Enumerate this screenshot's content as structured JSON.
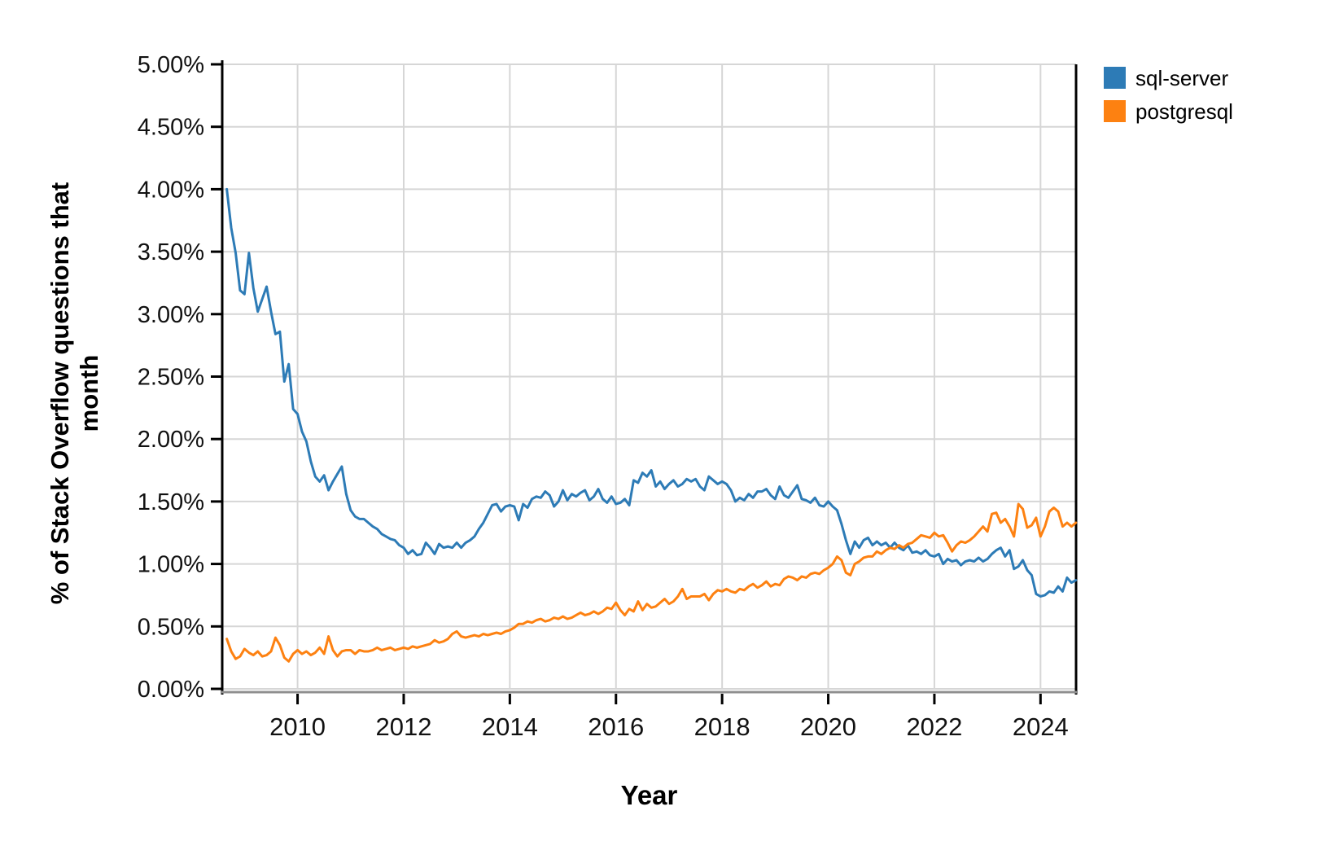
{
  "chart_data": {
    "type": "line",
    "title": "",
    "xlabel": "Year",
    "ylabel": "% of Stack Overflow questions that month",
    "x_start_year": 2008.6667,
    "x_step_years": 0.08333,
    "xlim": [
      2008.58,
      2024.67
    ],
    "ylim": [
      0,
      5
    ],
    "grid": true,
    "legend_position": "top-right",
    "x_ticks": [
      {
        "value": 2010,
        "label": "2010"
      },
      {
        "value": 2012,
        "label": "2012"
      },
      {
        "value": 2014,
        "label": "2014"
      },
      {
        "value": 2016,
        "label": "2016"
      },
      {
        "value": 2018,
        "label": "2018"
      },
      {
        "value": 2020,
        "label": "2020"
      },
      {
        "value": 2022,
        "label": "2022"
      },
      {
        "value": 2024,
        "label": "2024"
      }
    ],
    "y_ticks": [
      {
        "value": 0.0,
        "label": "0.00%"
      },
      {
        "value": 0.5,
        "label": "0.50%"
      },
      {
        "value": 1.0,
        "label": "1.00%"
      },
      {
        "value": 1.5,
        "label": "1.50%"
      },
      {
        "value": 2.0,
        "label": "2.00%"
      },
      {
        "value": 2.5,
        "label": "2.50%"
      },
      {
        "value": 3.0,
        "label": "3.00%"
      },
      {
        "value": 3.5,
        "label": "3.50%"
      },
      {
        "value": 4.0,
        "label": "4.00%"
      },
      {
        "value": 4.5,
        "label": "4.50%"
      },
      {
        "value": 5.0,
        "label": "5.00%"
      }
    ],
    "series": [
      {
        "name": "sql-server",
        "color": "#2d7bb6",
        "unit": "percent",
        "values": [
          4.0,
          3.69,
          3.49,
          3.19,
          3.16,
          3.49,
          3.21,
          3.02,
          3.12,
          3.22,
          3.02,
          2.84,
          2.86,
          2.46,
          2.6,
          2.24,
          2.2,
          2.06,
          1.98,
          1.82,
          1.7,
          1.66,
          1.71,
          1.59,
          1.66,
          1.72,
          1.78,
          1.56,
          1.43,
          1.38,
          1.36,
          1.36,
          1.33,
          1.3,
          1.28,
          1.24,
          1.22,
          1.2,
          1.19,
          1.15,
          1.13,
          1.08,
          1.11,
          1.07,
          1.08,
          1.17,
          1.13,
          1.08,
          1.16,
          1.13,
          1.14,
          1.13,
          1.17,
          1.13,
          1.17,
          1.19,
          1.22,
          1.28,
          1.33,
          1.4,
          1.47,
          1.48,
          1.42,
          1.46,
          1.47,
          1.46,
          1.35,
          1.48,
          1.45,
          1.52,
          1.54,
          1.53,
          1.58,
          1.55,
          1.46,
          1.5,
          1.59,
          1.51,
          1.56,
          1.54,
          1.57,
          1.59,
          1.51,
          1.54,
          1.6,
          1.52,
          1.49,
          1.54,
          1.48,
          1.49,
          1.52,
          1.47,
          1.67,
          1.65,
          1.73,
          1.7,
          1.75,
          1.62,
          1.66,
          1.6,
          1.64,
          1.67,
          1.62,
          1.64,
          1.68,
          1.66,
          1.68,
          1.62,
          1.59,
          1.7,
          1.67,
          1.64,
          1.66,
          1.64,
          1.59,
          1.5,
          1.53,
          1.51,
          1.56,
          1.53,
          1.58,
          1.58,
          1.6,
          1.55,
          1.52,
          1.62,
          1.55,
          1.53,
          1.58,
          1.63,
          1.52,
          1.51,
          1.49,
          1.53,
          1.47,
          1.46,
          1.5,
          1.46,
          1.43,
          1.32,
          1.19,
          1.08,
          1.18,
          1.13,
          1.19,
          1.21,
          1.15,
          1.18,
          1.15,
          1.17,
          1.13,
          1.17,
          1.13,
          1.11,
          1.15,
          1.09,
          1.1,
          1.08,
          1.11,
          1.07,
          1.06,
          1.08,
          1.0,
          1.04,
          1.02,
          1.03,
          0.99,
          1.02,
          1.03,
          1.02,
          1.05,
          1.02,
          1.04,
          1.08,
          1.11,
          1.13,
          1.06,
          1.11,
          0.96,
          0.98,
          1.03,
          0.95,
          0.91,
          0.76,
          0.74,
          0.75,
          0.78,
          0.77,
          0.82,
          0.78,
          0.89,
          0.85,
          0.87
        ]
      },
      {
        "name": "postgresql",
        "color": "#fd8111",
        "unit": "percent",
        "values": [
          0.4,
          0.3,
          0.24,
          0.26,
          0.32,
          0.29,
          0.27,
          0.3,
          0.26,
          0.27,
          0.3,
          0.41,
          0.35,
          0.25,
          0.22,
          0.28,
          0.31,
          0.28,
          0.3,
          0.27,
          0.29,
          0.33,
          0.28,
          0.42,
          0.31,
          0.26,
          0.3,
          0.31,
          0.31,
          0.28,
          0.31,
          0.3,
          0.3,
          0.31,
          0.33,
          0.31,
          0.32,
          0.33,
          0.31,
          0.32,
          0.33,
          0.32,
          0.34,
          0.33,
          0.34,
          0.35,
          0.36,
          0.39,
          0.37,
          0.38,
          0.4,
          0.44,
          0.46,
          0.42,
          0.41,
          0.42,
          0.43,
          0.42,
          0.44,
          0.43,
          0.44,
          0.45,
          0.44,
          0.46,
          0.47,
          0.49,
          0.52,
          0.52,
          0.54,
          0.53,
          0.55,
          0.56,
          0.54,
          0.55,
          0.57,
          0.56,
          0.58,
          0.56,
          0.57,
          0.59,
          0.61,
          0.59,
          0.6,
          0.62,
          0.6,
          0.62,
          0.65,
          0.64,
          0.69,
          0.63,
          0.59,
          0.64,
          0.62,
          0.7,
          0.63,
          0.68,
          0.65,
          0.66,
          0.69,
          0.72,
          0.68,
          0.7,
          0.74,
          0.8,
          0.72,
          0.74,
          0.74,
          0.74,
          0.76,
          0.71,
          0.76,
          0.79,
          0.78,
          0.8,
          0.78,
          0.77,
          0.8,
          0.79,
          0.82,
          0.84,
          0.81,
          0.83,
          0.86,
          0.82,
          0.84,
          0.83,
          0.88,
          0.9,
          0.89,
          0.87,
          0.9,
          0.89,
          0.92,
          0.93,
          0.92,
          0.95,
          0.97,
          1.0,
          1.06,
          1.03,
          0.93,
          0.91,
          1.0,
          1.02,
          1.05,
          1.06,
          1.06,
          1.1,
          1.08,
          1.11,
          1.13,
          1.12,
          1.15,
          1.13,
          1.16,
          1.17,
          1.2,
          1.23,
          1.22,
          1.21,
          1.25,
          1.22,
          1.23,
          1.17,
          1.1,
          1.15,
          1.18,
          1.17,
          1.19,
          1.22,
          1.26,
          1.3,
          1.26,
          1.4,
          1.41,
          1.33,
          1.36,
          1.3,
          1.22,
          1.48,
          1.44,
          1.29,
          1.31,
          1.37,
          1.22,
          1.3,
          1.42,
          1.45,
          1.42,
          1.3,
          1.33,
          1.3,
          1.33
        ]
      }
    ],
    "colors": {
      "gridline": "#d6d6d6",
      "axis": "#000000",
      "bottom_axis": "#8f8f8f",
      "background": "#ffffff",
      "tick_label": "#111111"
    }
  },
  "legend": {
    "items": [
      {
        "label": "sql-server",
        "color": "#2d7bb6"
      },
      {
        "label": "postgresql",
        "color": "#fd8111"
      }
    ]
  }
}
